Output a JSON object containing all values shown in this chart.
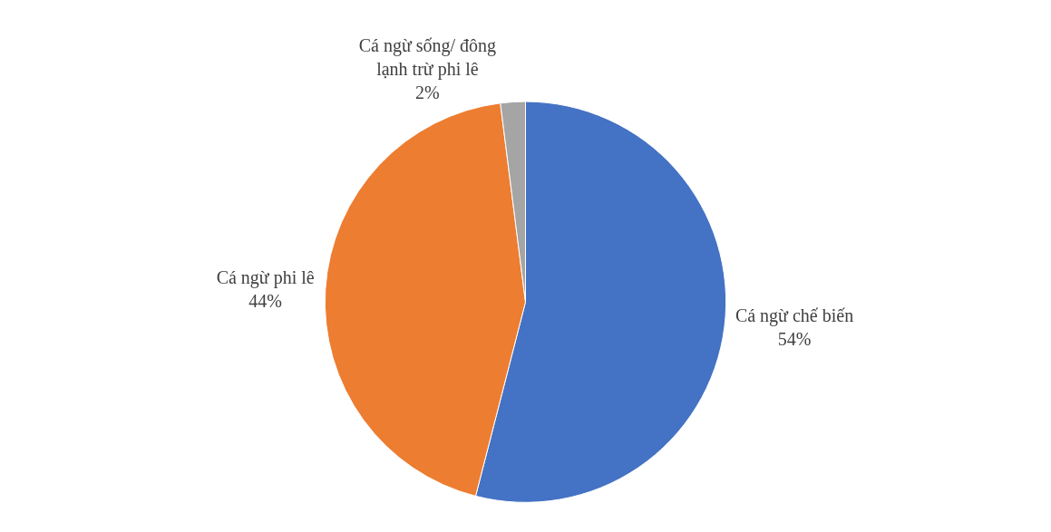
{
  "chart_data": {
    "type": "pie",
    "categories": [
      "Cá ngừ chế biến",
      "Cá ngừ phi lê",
      "Cá ngừ sống/ đông lạnh trừ phi lê"
    ],
    "values": [
      54,
      44,
      2
    ],
    "value_labels": [
      "54%",
      "44%",
      "2%"
    ],
    "colors": [
      "#4472c4",
      "#ed7d31",
      "#a5a5a5"
    ],
    "legend": false
  }
}
